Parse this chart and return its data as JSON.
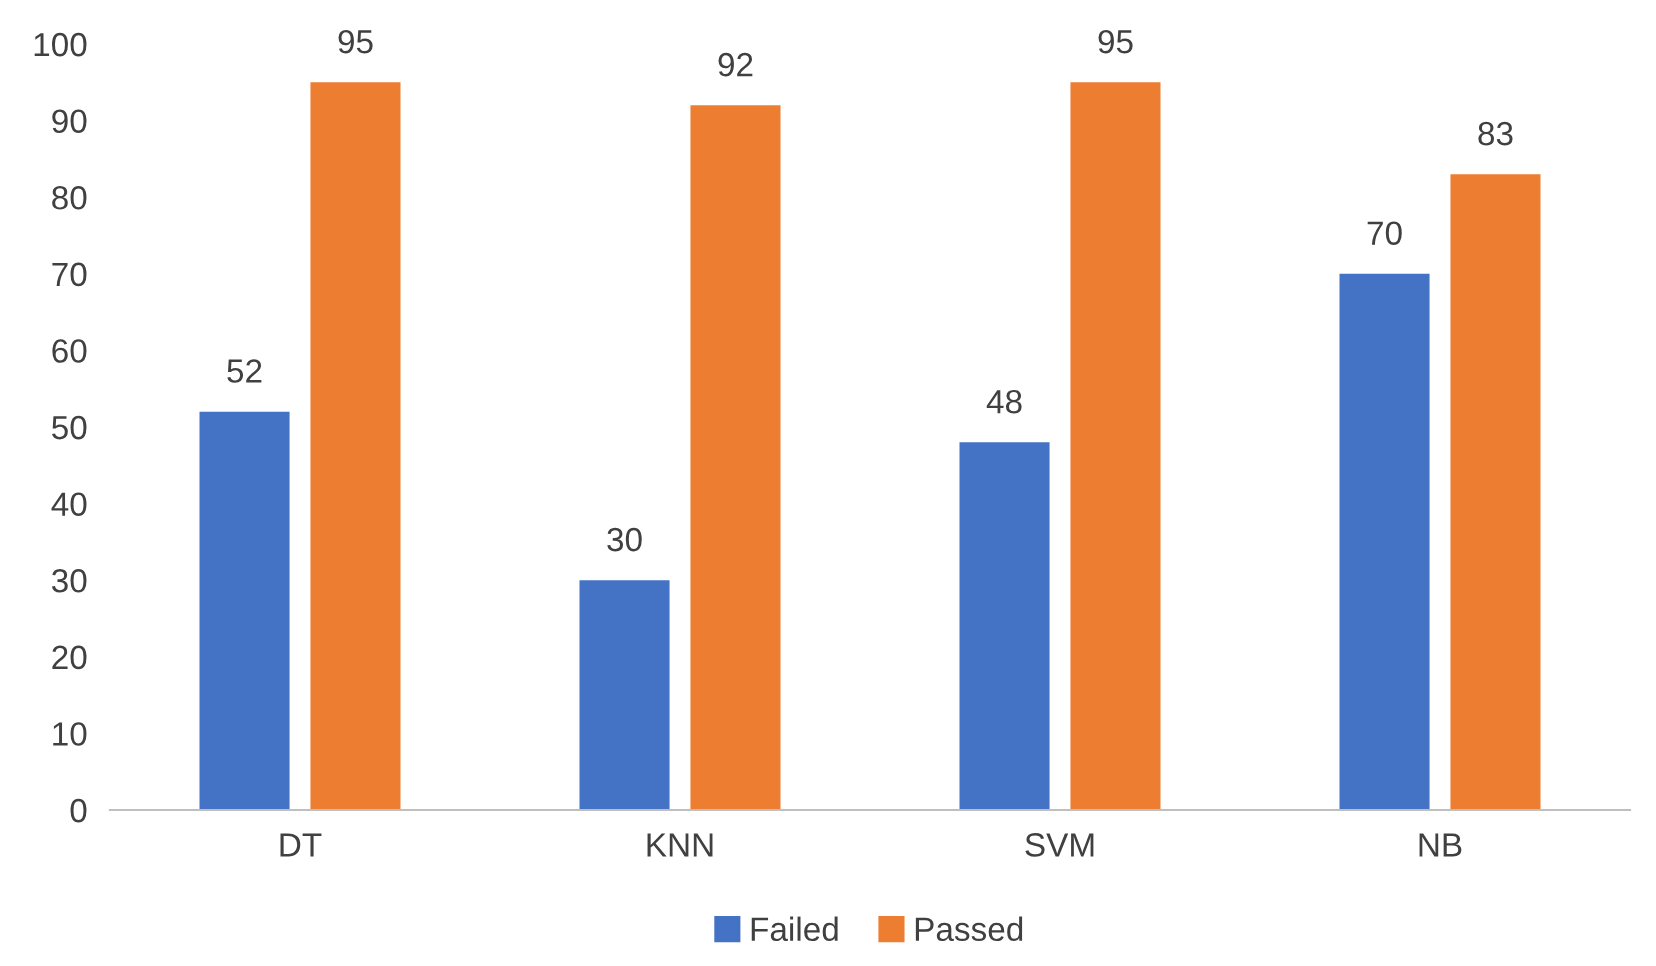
{
  "chart_data": {
    "type": "bar",
    "categories": [
      "DT",
      "KNN",
      "SVM",
      "NB"
    ],
    "series": [
      {
        "name": "Failed",
        "color": "#4472c4",
        "values": [
          52,
          30,
          48,
          70
        ]
      },
      {
        "name": "Passed",
        "color": "#ed7d31",
        "values": [
          95,
          92,
          95,
          83
        ]
      }
    ],
    "ylim": [
      0,
      100
    ],
    "yticks": [
      0,
      10,
      20,
      30,
      40,
      50,
      60,
      70,
      80,
      90,
      100
    ],
    "data_labels": true,
    "legend": "bottom",
    "grid": false
  }
}
